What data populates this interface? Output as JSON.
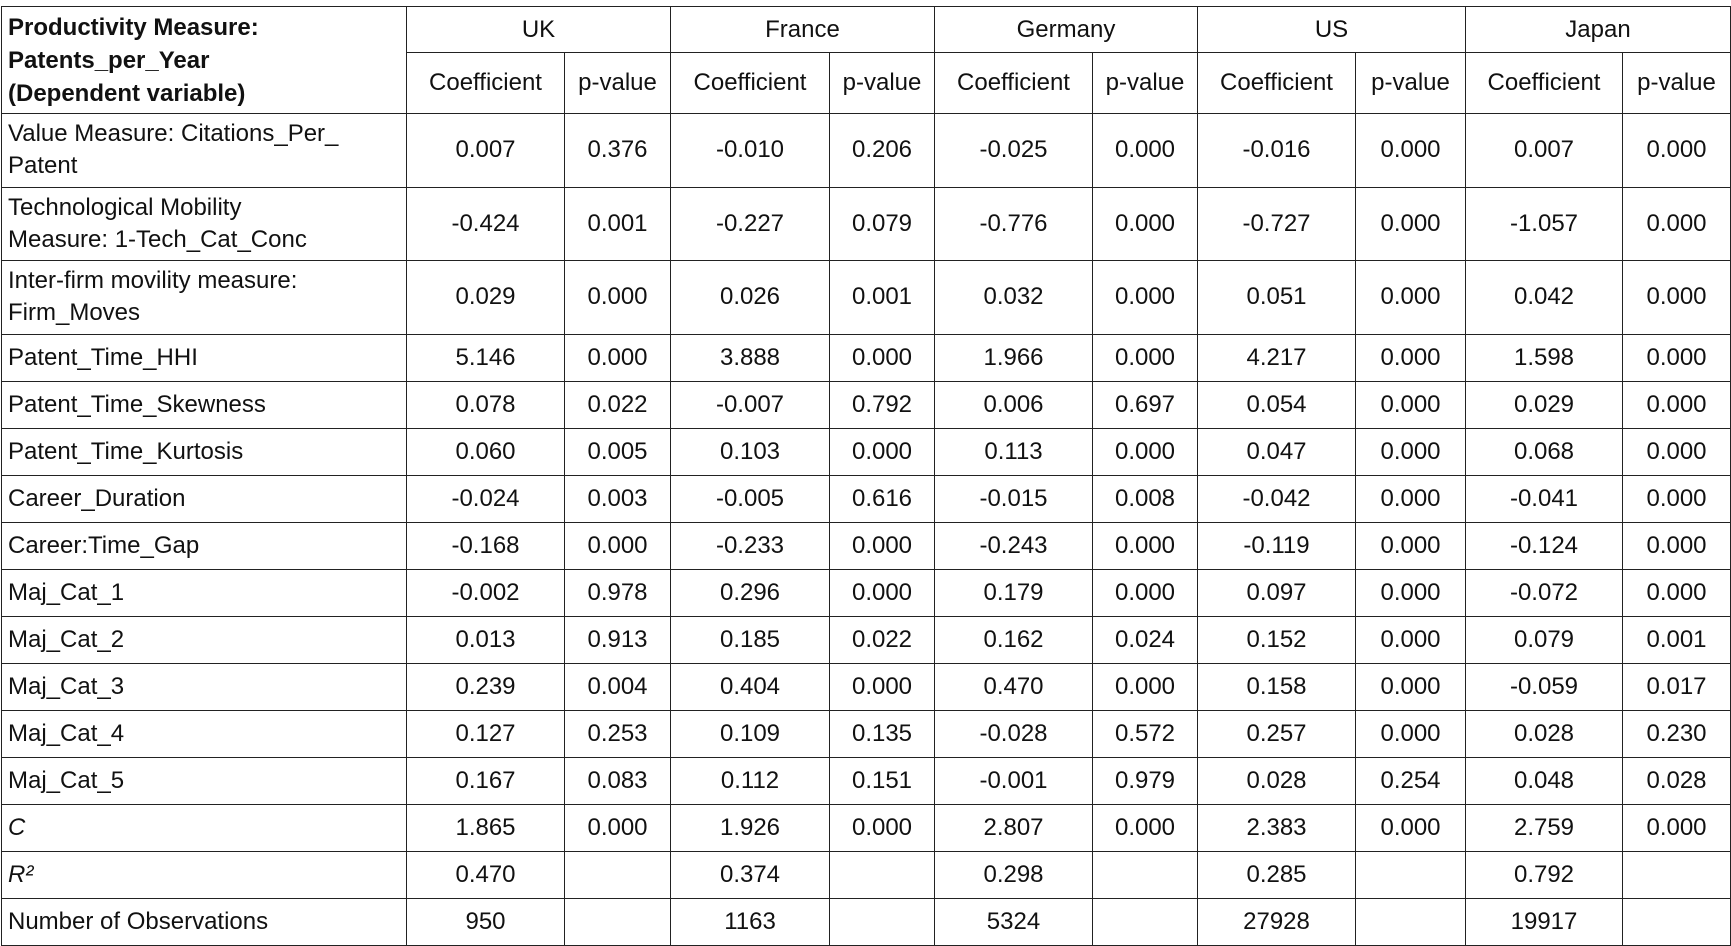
{
  "table": {
    "title": [
      "Productivity Measure:",
      "Patents_per_Year",
      "(Dependent variable)"
    ],
    "countries": [
      "UK",
      "France",
      "Germany",
      "US",
      "Japan"
    ],
    "subheaders": [
      "Coefficient",
      "p-value"
    ],
    "rows": [
      {
        "label": [
          "Value Measure: Citations_Per_",
          "Patent"
        ],
        "values": [
          "0.007",
          "0.376",
          "-0.010",
          "0.206",
          "-0.025",
          "0.000",
          "-0.016",
          "0.000",
          "0.007",
          "0.000"
        ]
      },
      {
        "label": [
          "Technological Mobility",
          "Measure: 1-Tech_Cat_Conc"
        ],
        "values": [
          "-0.424",
          "0.001",
          "-0.227",
          "0.079",
          "-0.776",
          "0.000",
          "-0.727",
          "0.000",
          "-1.057",
          "0.000"
        ]
      },
      {
        "label": [
          "Inter-firm movility measure:",
          "Firm_Moves"
        ],
        "values": [
          "0.029",
          "0.000",
          "0.026",
          "0.001",
          "0.032",
          "0.000",
          "0.051",
          "0.000",
          "0.042",
          "0.000"
        ]
      },
      {
        "label": [
          "Patent_Time_HHI"
        ],
        "values": [
          "5.146",
          "0.000",
          "3.888",
          "0.000",
          "1.966",
          "0.000",
          "4.217",
          "0.000",
          "1.598",
          "0.000"
        ]
      },
      {
        "label": [
          "Patent_Time_Skewness"
        ],
        "values": [
          "0.078",
          "0.022",
          "-0.007",
          "0.792",
          "0.006",
          "0.697",
          "0.054",
          "0.000",
          "0.029",
          "0.000"
        ]
      },
      {
        "label": [
          "Patent_Time_Kurtosis"
        ],
        "values": [
          "0.060",
          "0.005",
          "0.103",
          "0.000",
          "0.113",
          "0.000",
          "0.047",
          "0.000",
          "0.068",
          "0.000"
        ]
      },
      {
        "label": [
          "Career_Duration"
        ],
        "values": [
          "-0.024",
          "0.003",
          "-0.005",
          "0.616",
          "-0.015",
          "0.008",
          "-0.042",
          "0.000",
          "-0.041",
          "0.000"
        ]
      },
      {
        "label": [
          "Career:Time_Gap"
        ],
        "values": [
          "-0.168",
          "0.000",
          "-0.233",
          "0.000",
          "-0.243",
          "0.000",
          "-0.119",
          "0.000",
          "-0.124",
          "0.000"
        ]
      },
      {
        "label": [
          "Maj_Cat_1"
        ],
        "values": [
          "-0.002",
          "0.978",
          "0.296",
          "0.000",
          "0.179",
          "0.000",
          "0.097",
          "0.000",
          "-0.072",
          "0.000"
        ]
      },
      {
        "label": [
          "Maj_Cat_2"
        ],
        "values": [
          "0.013",
          "0.913",
          "0.185",
          "0.022",
          "0.162",
          "0.024",
          "0.152",
          "0.000",
          "0.079",
          "0.001"
        ]
      },
      {
        "label": [
          "Maj_Cat_3"
        ],
        "values": [
          "0.239",
          "0.004",
          "0.404",
          "0.000",
          "0.470",
          "0.000",
          "0.158",
          "0.000",
          "-0.059",
          "0.017"
        ]
      },
      {
        "label": [
          "Maj_Cat_4"
        ],
        "values": [
          "0.127",
          "0.253",
          "0.109",
          "0.135",
          "-0.028",
          "0.572",
          "0.257",
          "0.000",
          "0.028",
          "0.230"
        ]
      },
      {
        "label": [
          "Maj_Cat_5"
        ],
        "values": [
          "0.167",
          "0.083",
          "0.112",
          "0.151",
          "-0.001",
          "0.979",
          "0.028",
          "0.254",
          "0.048",
          "0.028"
        ]
      },
      {
        "label": [
          "C"
        ],
        "values": [
          "1.865",
          "0.000",
          "1.926",
          "0.000",
          "2.807",
          "0.000",
          "2.383",
          "0.000",
          "2.759",
          "0.000"
        ]
      },
      {
        "label": [
          "R²"
        ],
        "values": [
          "0.470",
          null,
          "0.374",
          null,
          "0.298",
          null,
          "0.285",
          null,
          "0.792",
          null
        ]
      },
      {
        "label": [
          "Number of Observations"
        ],
        "values": [
          "950",
          null,
          "1163",
          null,
          "5324",
          null,
          "27928",
          null,
          "19917",
          null
        ]
      }
    ]
  }
}
